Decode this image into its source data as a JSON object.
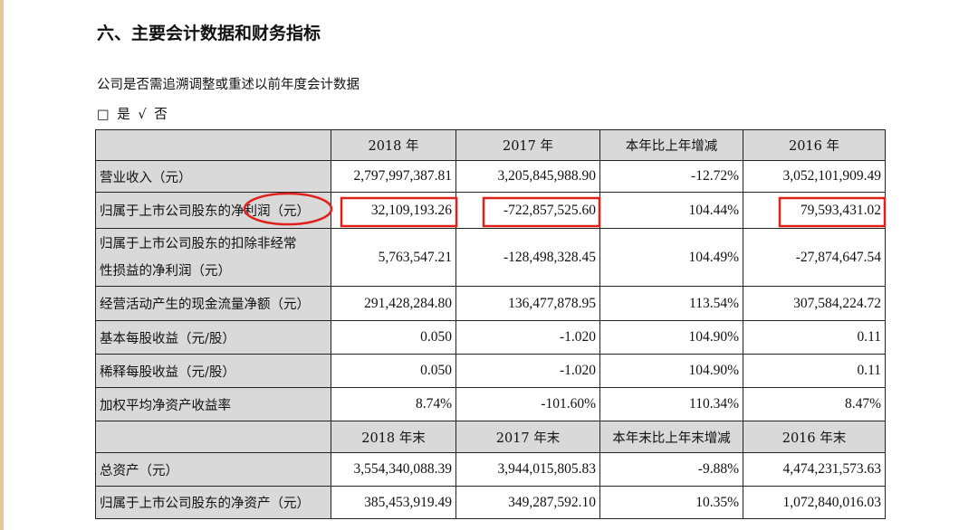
{
  "title": "六、主要会计数据和财务指标",
  "subtitle": "公司是否需追溯调整或重述以前年度会计数据",
  "options": "□ 是 √ 否",
  "table": {
    "header": [
      "2018 年",
      "2017 年",
      "本年比上年增减",
      "2016 年"
    ],
    "rows": [
      [
        "营业收入（元）",
        "2,797,997,387.81",
        "3,205,845,988.90",
        "-12.72%",
        "3,052,101,909.49"
      ],
      [
        "归属于上市公司股东的净利润（元）",
        "32,109,193.26",
        "-722,857,525.60",
        "104.44%",
        "79,593,431.02"
      ],
      [
        [
          "归属于上市公司股东的扣除非经常",
          "性损益的净利润（元）"
        ],
        "5,763,547.21",
        "-128,498,328.45",
        "104.49%",
        "-27,874,647.54"
      ],
      [
        "经营活动产生的现金流量净额（元）",
        "291,428,284.80",
        "136,477,878.95",
        "113.54%",
        "307,584,224.72"
      ],
      [
        "基本每股收益（元/股）",
        "0.050",
        "-1.020",
        "104.90%",
        "0.11"
      ],
      [
        "稀释每股收益（元/股）",
        "0.050",
        "-1.020",
        "104.90%",
        "0.11"
      ],
      [
        "加权平均净资产收益率",
        "8.74%",
        "-101.60%",
        "110.34%",
        "8.47%"
      ]
    ],
    "header2": [
      "2018 年末",
      "2017 年末",
      "本年末比上年末增减",
      "2016 年末"
    ],
    "rows2": [
      [
        "总资产（元）",
        "3,554,340,088.39",
        "3,944,015,805.83",
        "-9.88%",
        "4,474,231,573.63"
      ],
      [
        "归属于上市公司股东的净资产（元）",
        "385,453,919.49",
        "349,287,592.10",
        "10.35%",
        "1,072,840,016.03"
      ]
    ]
  }
}
